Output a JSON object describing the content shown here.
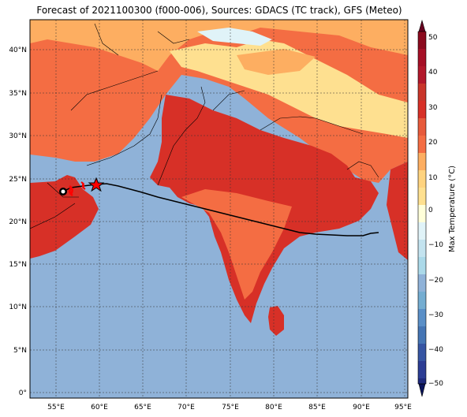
{
  "title": "Forecast of 2021100300 (f000-006), Sources: GDACS (TC track), GFS (Meteo)",
  "map": {
    "lon_ticks": [
      "55°E",
      "60°E",
      "65°E",
      "70°E",
      "75°E",
      "80°E",
      "85°E",
      "90°E",
      "95°E"
    ],
    "lat_ticks": [
      "0°",
      "5°N",
      "10°N",
      "15°N",
      "20°N",
      "25°N",
      "30°N",
      "35°N",
      "40°N"
    ],
    "colors": {
      "ocean": "#8fb2d8",
      "hot": "#d73027",
      "warm": "#f46d43",
      "mild": "#fdae61",
      "cool": "#fee090",
      "cold": "#e0f3f8",
      "track": "#000000",
      "storm_marker": "#ff0000"
    }
  },
  "colorbar": {
    "label": "Max Temperature (°C)",
    "ticks": [
      "50",
      "40",
      "30",
      "20",
      "10",
      "0",
      "−10",
      "−20",
      "−30",
      "−40",
      "−50"
    ]
  }
}
